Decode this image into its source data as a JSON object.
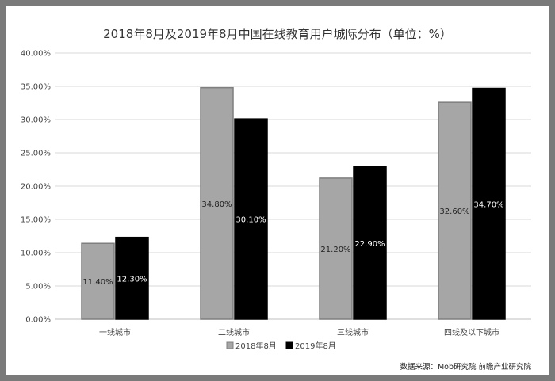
{
  "chart_data": {
    "type": "bar",
    "title": "2018年8月及2019年8月中国在线教育用户城际分布（单位：%）",
    "categories": [
      "一线城市",
      "二线城市",
      "三线城市",
      "四线及以下城市"
    ],
    "series": [
      {
        "name": "2018年8月",
        "values": [
          11.4,
          34.8,
          21.2,
          32.6
        ],
        "labels": [
          "11.40%",
          "34.80%",
          "21.20%",
          "32.60%"
        ],
        "color": "#a6a6a6"
      },
      {
        "name": "2019年8月",
        "values": [
          12.3,
          30.1,
          22.9,
          34.7
        ],
        "labels": [
          "12.30%",
          "30.10%",
          "22.90%",
          "34.70%"
        ],
        "color": "#000000"
      }
    ],
    "ylim": [
      0,
      40
    ],
    "yticks": [
      "0.00%",
      "5.00%",
      "10.00%",
      "15.00%",
      "20.00%",
      "25.00%",
      "30.00%",
      "35.00%",
      "40.00%"
    ],
    "grid": true,
    "legend": "bottom-center",
    "source": "数据来源：Mob研究院 前瞻产业研究院"
  }
}
